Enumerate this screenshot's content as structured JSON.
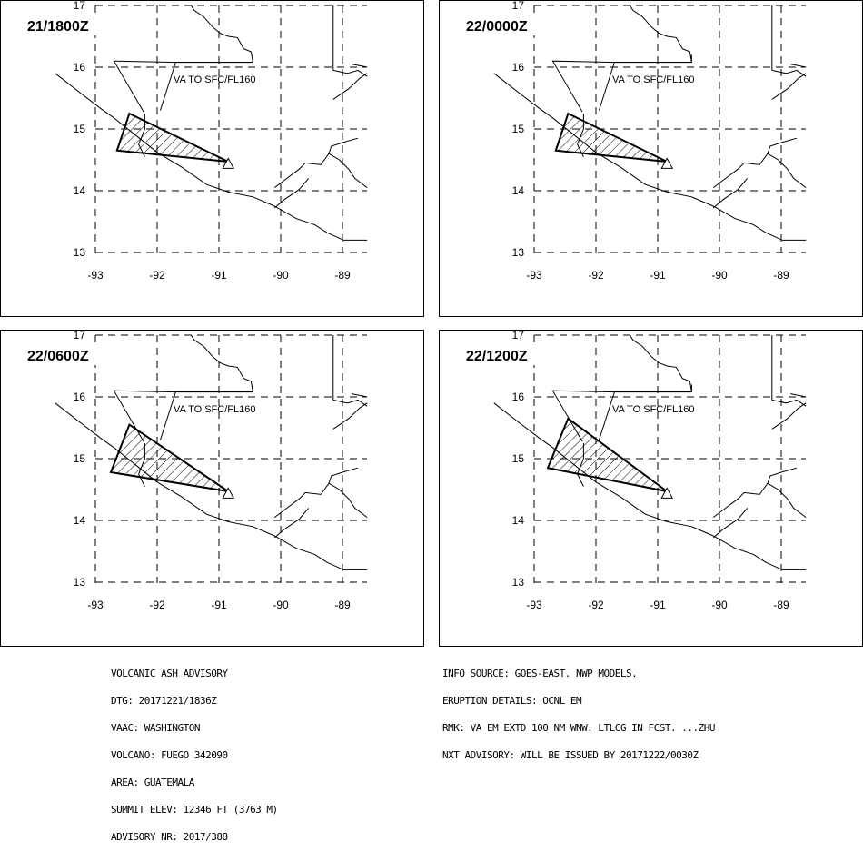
{
  "map": {
    "lon_ticks": [
      -93,
      -92,
      -91,
      -90,
      -89
    ],
    "lat_ticks": [
      13,
      14,
      15,
      16,
      17
    ],
    "lon_labels": [
      "-93",
      "-92",
      "-91",
      "-90",
      "-89"
    ],
    "lat_labels": [
      "13",
      "14",
      "15",
      "16",
      "17"
    ],
    "plume_label": "VA TO SFC/FL160",
    "volcano_symbol": "volcano-triangle-icon"
  },
  "panels": [
    {
      "time": "21/1800Z",
      "plume": [
        [
          -92.45,
          15.25
        ],
        [
          -92.65,
          14.65
        ],
        [
          -90.85,
          14.47
        ]
      ]
    },
    {
      "time": "22/0000Z",
      "plume": [
        [
          -92.45,
          15.25
        ],
        [
          -92.65,
          14.65
        ],
        [
          -90.85,
          14.47
        ]
      ]
    },
    {
      "time": "22/0600Z",
      "plume": [
        [
          -92.45,
          15.55
        ],
        [
          -92.75,
          14.78
        ],
        [
          -90.85,
          14.47
        ]
      ]
    },
    {
      "time": "22/1200Z",
      "plume": [
        [
          -92.45,
          15.65
        ],
        [
          -92.78,
          14.85
        ],
        [
          -90.85,
          14.47
        ]
      ]
    }
  ],
  "advisory_left": [
    "VOLCANIC ASH ADVISORY",
    "DTG: 20171221/1836Z",
    "VAAC: WASHINGTON",
    "VOLCANO: FUEGO 342090",
    "AREA: GUATEMALA",
    "SUMMIT ELEV: 12346 FT (3763 M)",
    "ADVISORY NR: 2017/388"
  ],
  "advisory_right": [
    "INFO SOURCE: GOES-EAST. NWP MODELS.",
    "ERUPTION DETAILS: OCNL EM",
    "RMK: VA EM EXTD 100 NM WNW. LTLCG IN FCST. ...ZHU",
    "NXT ADVISORY: WILL BE ISSUED BY 20171222/0030Z"
  ]
}
